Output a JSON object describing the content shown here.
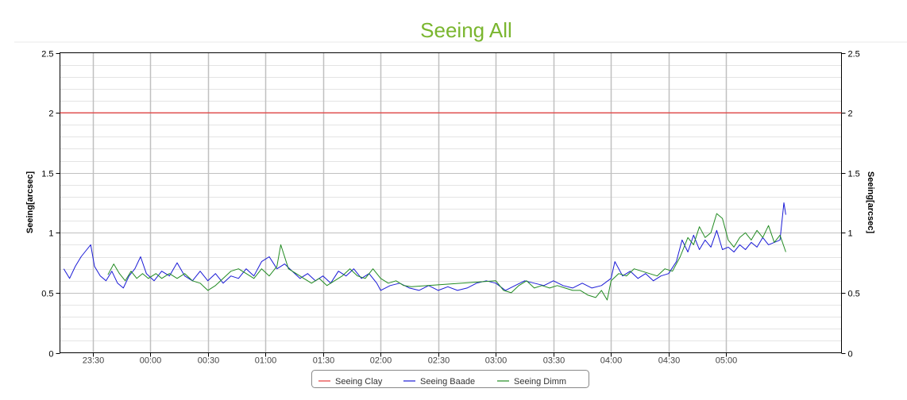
{
  "chart_data": {
    "type": "line",
    "title": "Seeing All",
    "ylabel_left": "Seeing[arcsec]",
    "ylabel_right": "Seeing[arcsec]",
    "ylim": [
      0,
      2.5
    ],
    "y_ticks": [
      "0",
      "0.5",
      "1",
      "1.5",
      "2",
      "2.5"
    ],
    "x_range": [
      "23:13",
      "06:00"
    ],
    "x_ticks": [
      "23:30",
      "00:00",
      "00:30",
      "01:00",
      "01:30",
      "02:00",
      "02:30",
      "03:00",
      "03:30",
      "04:00",
      "04:30",
      "05:00"
    ],
    "grid": true,
    "legend_position": "bottom-center",
    "colors": {
      "title": "#7ab62f",
      "clay": "#e53b3b",
      "baade": "#1a1ad6",
      "dimm": "#228b22",
      "grid_major": "#c0c0c0",
      "grid_minor": "#e4e4e4"
    },
    "series": [
      {
        "name": "Seeing Clay",
        "color": "#e53b3b",
        "points": [
          [
            "23:13",
            2.0
          ],
          [
            "06:00",
            2.0
          ]
        ]
      },
      {
        "name": "Seeing Baade",
        "color": "#1a1ad6",
        "points": [
          [
            "23:15",
            0.7
          ],
          [
            "23:18",
            0.62
          ],
          [
            "23:21",
            0.72
          ],
          [
            "23:24",
            0.8
          ],
          [
            "23:27",
            0.86
          ],
          [
            "23:29",
            0.9
          ],
          [
            "23:31",
            0.72
          ],
          [
            "23:34",
            0.64
          ],
          [
            "23:37",
            0.6
          ],
          [
            "23:40",
            0.68
          ],
          [
            "23:43",
            0.58
          ],
          [
            "23:46",
            0.54
          ],
          [
            "23:49",
            0.64
          ],
          [
            "23:52",
            0.7
          ],
          [
            "23:55",
            0.8
          ],
          [
            "23:58",
            0.66
          ],
          [
            "00:02",
            0.6
          ],
          [
            "00:06",
            0.68
          ],
          [
            "00:10",
            0.64
          ],
          [
            "00:14",
            0.75
          ],
          [
            "00:18",
            0.64
          ],
          [
            "00:22",
            0.6
          ],
          [
            "00:26",
            0.68
          ],
          [
            "00:30",
            0.6
          ],
          [
            "00:34",
            0.66
          ],
          [
            "00:38",
            0.58
          ],
          [
            "00:42",
            0.64
          ],
          [
            "00:46",
            0.62
          ],
          [
            "00:50",
            0.7
          ],
          [
            "00:54",
            0.64
          ],
          [
            "00:58",
            0.76
          ],
          [
            "01:02",
            0.8
          ],
          [
            "01:06",
            0.7
          ],
          [
            "01:10",
            0.74
          ],
          [
            "01:14",
            0.68
          ],
          [
            "01:18",
            0.62
          ],
          [
            "01:22",
            0.66
          ],
          [
            "01:26",
            0.6
          ],
          [
            "01:30",
            0.64
          ],
          [
            "01:34",
            0.58
          ],
          [
            "01:38",
            0.68
          ],
          [
            "01:42",
            0.64
          ],
          [
            "01:46",
            0.7
          ],
          [
            "01:50",
            0.62
          ],
          [
            "01:54",
            0.66
          ],
          [
            "01:58",
            0.58
          ],
          [
            "02:00",
            0.52
          ],
          [
            "02:05",
            0.56
          ],
          [
            "02:10",
            0.58
          ],
          [
            "02:15",
            0.54
          ],
          [
            "02:20",
            0.52
          ],
          [
            "02:25",
            0.56
          ],
          [
            "02:30",
            0.52
          ],
          [
            "02:35",
            0.55
          ],
          [
            "02:40",
            0.52
          ],
          [
            "02:45",
            0.54
          ],
          [
            "02:50",
            0.58
          ],
          [
            "02:55",
            0.6
          ],
          [
            "03:00",
            0.58
          ],
          [
            "03:05",
            0.52
          ],
          [
            "03:10",
            0.56
          ],
          [
            "03:15",
            0.6
          ],
          [
            "03:20",
            0.58
          ],
          [
            "03:25",
            0.56
          ],
          [
            "03:30",
            0.6
          ],
          [
            "03:35",
            0.56
          ],
          [
            "03:40",
            0.54
          ],
          [
            "03:45",
            0.58
          ],
          [
            "03:50",
            0.54
          ],
          [
            "03:55",
            0.56
          ],
          [
            "04:00",
            0.62
          ],
          [
            "04:02",
            0.76
          ],
          [
            "04:06",
            0.64
          ],
          [
            "04:10",
            0.68
          ],
          [
            "04:14",
            0.62
          ],
          [
            "04:18",
            0.66
          ],
          [
            "04:22",
            0.6
          ],
          [
            "04:26",
            0.64
          ],
          [
            "04:30",
            0.66
          ],
          [
            "04:34",
            0.76
          ],
          [
            "04:37",
            0.94
          ],
          [
            "04:40",
            0.84
          ],
          [
            "04:43",
            0.98
          ],
          [
            "04:46",
            0.86
          ],
          [
            "04:49",
            0.94
          ],
          [
            "04:52",
            0.88
          ],
          [
            "04:55",
            1.02
          ],
          [
            "04:58",
            0.86
          ],
          [
            "05:01",
            0.88
          ],
          [
            "05:04",
            0.84
          ],
          [
            "05:07",
            0.9
          ],
          [
            "05:10",
            0.86
          ],
          [
            "05:13",
            0.92
          ],
          [
            "05:16",
            0.88
          ],
          [
            "05:19",
            0.96
          ],
          [
            "05:22",
            0.9
          ],
          [
            "05:25",
            0.92
          ],
          [
            "05:28",
            0.94
          ],
          [
            "05:30",
            1.25
          ],
          [
            "05:31",
            1.15
          ]
        ]
      },
      {
        "name": "Seeing Dimm",
        "color": "#228b22",
        "points": [
          [
            "23:38",
            0.65
          ],
          [
            "23:41",
            0.74
          ],
          [
            "23:44",
            0.66
          ],
          [
            "23:47",
            0.6
          ],
          [
            "23:50",
            0.68
          ],
          [
            "23:53",
            0.62
          ],
          [
            "23:56",
            0.66
          ],
          [
            "23:59",
            0.62
          ],
          [
            "00:03",
            0.66
          ],
          [
            "00:06",
            0.62
          ],
          [
            "00:10",
            0.66
          ],
          [
            "00:14",
            0.62
          ],
          [
            "00:18",
            0.66
          ],
          [
            "00:22",
            0.6
          ],
          [
            "00:26",
            0.58
          ],
          [
            "00:30",
            0.52
          ],
          [
            "00:34",
            0.56
          ],
          [
            "00:38",
            0.62
          ],
          [
            "00:42",
            0.68
          ],
          [
            "00:46",
            0.7
          ],
          [
            "00:50",
            0.66
          ],
          [
            "00:54",
            0.62
          ],
          [
            "00:58",
            0.7
          ],
          [
            "01:02",
            0.64
          ],
          [
            "01:06",
            0.72
          ],
          [
            "01:08",
            0.9
          ],
          [
            "01:12",
            0.7
          ],
          [
            "01:16",
            0.66
          ],
          [
            "01:20",
            0.62
          ],
          [
            "01:24",
            0.58
          ],
          [
            "01:28",
            0.62
          ],
          [
            "01:32",
            0.56
          ],
          [
            "01:36",
            0.6
          ],
          [
            "01:40",
            0.64
          ],
          [
            "01:44",
            0.7
          ],
          [
            "01:48",
            0.64
          ],
          [
            "01:52",
            0.62
          ],
          [
            "01:56",
            0.7
          ],
          [
            "02:00",
            0.62
          ],
          [
            "02:04",
            0.58
          ],
          [
            "02:08",
            0.6
          ],
          [
            "02:12",
            0.56
          ],
          [
            "02:16",
            0.55
          ],
          [
            "03:00",
            0.6
          ],
          [
            "03:04",
            0.52
          ],
          [
            "03:08",
            0.5
          ],
          [
            "03:12",
            0.56
          ],
          [
            "03:16",
            0.6
          ],
          [
            "03:20",
            0.54
          ],
          [
            "03:24",
            0.56
          ],
          [
            "03:28",
            0.54
          ],
          [
            "03:32",
            0.56
          ],
          [
            "03:36",
            0.54
          ],
          [
            "03:40",
            0.52
          ],
          [
            "03:44",
            0.52
          ],
          [
            "03:48",
            0.48
          ],
          [
            "03:52",
            0.46
          ],
          [
            "03:55",
            0.52
          ],
          [
            "03:58",
            0.44
          ],
          [
            "04:00",
            0.6
          ],
          [
            "04:04",
            0.66
          ],
          [
            "04:08",
            0.64
          ],
          [
            "04:12",
            0.7
          ],
          [
            "04:16",
            0.68
          ],
          [
            "04:20",
            0.66
          ],
          [
            "04:24",
            0.64
          ],
          [
            "04:28",
            0.7
          ],
          [
            "04:32",
            0.68
          ],
          [
            "04:36",
            0.8
          ],
          [
            "04:40",
            0.96
          ],
          [
            "04:43",
            0.9
          ],
          [
            "04:46",
            1.05
          ],
          [
            "04:49",
            0.96
          ],
          [
            "04:52",
            1.0
          ],
          [
            "04:55",
            1.16
          ],
          [
            "04:58",
            1.12
          ],
          [
            "05:01",
            0.94
          ],
          [
            "05:04",
            0.88
          ],
          [
            "05:07",
            0.96
          ],
          [
            "05:10",
            1.0
          ],
          [
            "05:13",
            0.94
          ],
          [
            "05:16",
            1.02
          ],
          [
            "05:19",
            0.96
          ],
          [
            "05:22",
            1.06
          ],
          [
            "05:25",
            0.92
          ],
          [
            "05:28",
            0.98
          ],
          [
            "05:31",
            0.84
          ]
        ]
      }
    ]
  }
}
